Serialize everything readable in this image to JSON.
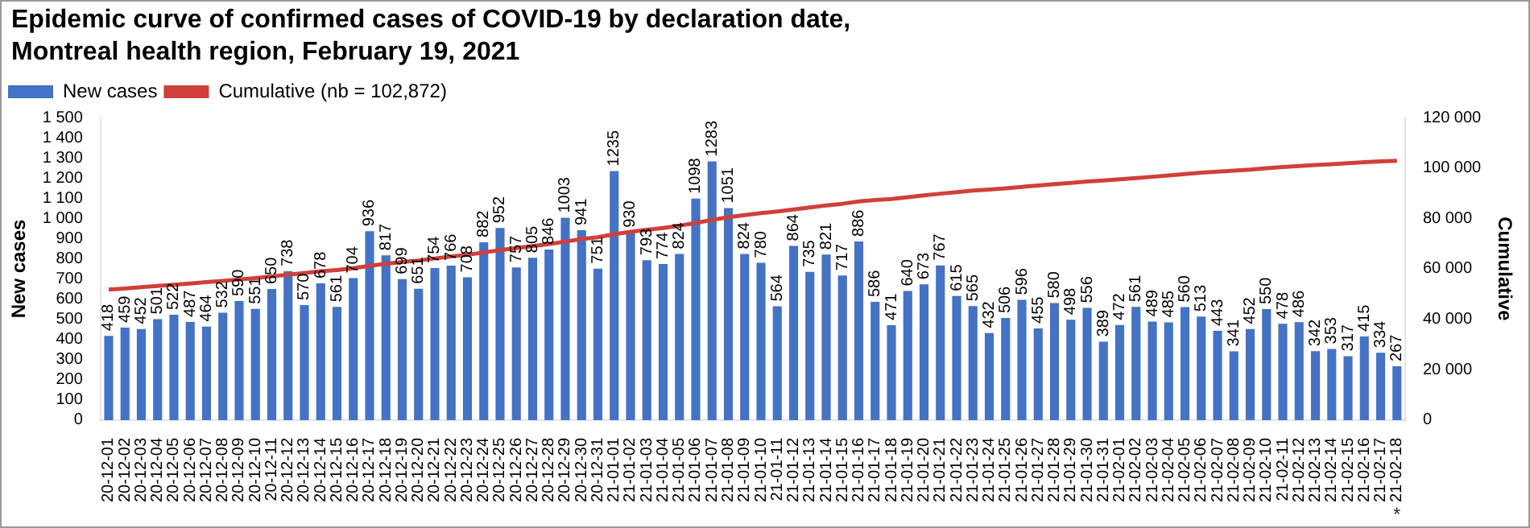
{
  "chart_data": {
    "type": "bar",
    "title": "Epidemic curve of confirmed cases of COVID-19 by declaration date,\nMontreal health region, February 19, 2021",
    "categories": [
      "20-12-01",
      "20-12-02",
      "20-12-03",
      "20-12-04",
      "20-12-05",
      "20-12-06",
      "20-12-07",
      "20-12-08",
      "20-12-09",
      "20-12-10",
      "20-12-11",
      "20-12-12",
      "20-12-13",
      "20-12-14",
      "20-12-15",
      "20-12-16",
      "20-12-17",
      "20-12-18",
      "20-12-19",
      "20-12-20",
      "20-12-21",
      "20-12-22",
      "20-12-23",
      "20-12-24",
      "20-12-25",
      "20-12-26",
      "20-12-27",
      "20-12-28",
      "20-12-29",
      "20-12-30",
      "20-12-31",
      "21-01-01",
      "21-01-02",
      "21-01-03",
      "21-01-04",
      "21-01-05",
      "21-01-06",
      "21-01-07",
      "21-01-08",
      "21-01-09",
      "21-01-10",
      "21-01-11",
      "21-01-12",
      "21-01-13",
      "21-01-14",
      "21-01-15",
      "21-01-16",
      "21-01-17",
      "21-01-18",
      "21-01-19",
      "21-01-20",
      "21-01-21",
      "21-01-22",
      "21-01-23",
      "21-01-24",
      "21-01-25",
      "21-01-26",
      "21-01-27",
      "21-01-28",
      "21-01-29",
      "21-01-30",
      "21-01-31",
      "21-02-01",
      "21-02-02",
      "21-02-03",
      "21-02-04",
      "21-02-05",
      "21-02-06",
      "21-02-07",
      "21-02-08",
      "21-02-09",
      "21-02-10",
      "21-02-11",
      "21-02-12",
      "21-02-13",
      "21-02-14",
      "21-02-15",
      "21-02-16",
      "21-02-17",
      "21-02-18"
    ],
    "series": [
      {
        "name": "New cases",
        "color": "#4472c4",
        "values": [
          418,
          459,
          452,
          501,
          522,
          487,
          464,
          532,
          590,
          551,
          650,
          738,
          570,
          678,
          561,
          704,
          936,
          817,
          699,
          651,
          754,
          766,
          708,
          882,
          952,
          757,
          805,
          846,
          1003,
          941,
          751,
          1235,
          930,
          793,
          774,
          824,
          1098,
          1283,
          1051,
          824,
          780,
          564,
          864,
          735,
          821,
          717,
          886,
          586,
          471,
          640,
          673,
          767,
          615,
          565,
          432,
          506,
          596,
          455,
          580,
          498,
          556,
          389,
          472,
          561,
          489,
          485,
          560,
          513,
          443,
          341,
          452,
          550,
          478,
          486,
          342,
          353,
          317,
          415,
          334,
          267
        ],
        "value_labels": [
          "418",
          "459",
          "452",
          "501",
          "522",
          "487",
          "464",
          "532",
          "590",
          "551",
          "650",
          "738",
          "570",
          "678",
          "561",
          "704",
          "936",
          "817",
          "699",
          "651",
          "754",
          "766",
          "708",
          "882",
          "952",
          "757",
          "805",
          "846",
          "1003",
          "941",
          "751",
          "1235",
          "930",
          "793",
          "774",
          "824",
          "1098",
          "1283",
          "1051",
          "824",
          "780",
          "564",
          "864",
          "735",
          "821",
          "717",
          "886",
          "586",
          "471",
          "640",
          "673",
          "767",
          "615",
          "565",
          "432",
          "506",
          "596",
          "455",
          "580",
          "498",
          "556",
          "389",
          "472",
          "561",
          "489",
          "485",
          "560",
          "513",
          "443",
          "341",
          "452",
          "550",
          "478",
          "486",
          "342",
          "353",
          "317",
          "415",
          "334",
          "267"
        ]
      },
      {
        "name": "Cumulative (nb = 102,872)",
        "type": "line",
        "axis": "y2",
        "color": "#d0403a",
        "values": [
          51800,
          52200,
          52700,
          53200,
          53700,
          54200,
          54700,
          55200,
          55800,
          56300,
          57000,
          57700,
          58300,
          59000,
          59500,
          60200,
          61200,
          62000,
          62700,
          63300,
          64100,
          64900,
          65600,
          66500,
          67400,
          68200,
          69000,
          69800,
          70800,
          71800,
          72500,
          73700,
          74700,
          75500,
          76200,
          77100,
          78200,
          79400,
          80500,
          81300,
          82100,
          82700,
          83500,
          84300,
          85100,
          85800,
          86700,
          87300,
          87700,
          88400,
          89100,
          89800,
          90400,
          91000,
          91400,
          91900,
          92500,
          93000,
          93600,
          94100,
          94600,
          95000,
          95500,
          96000,
          96500,
          97000,
          97600,
          98100,
          98500,
          98900,
          99300,
          99900,
          100400,
          100800,
          101200,
          101500,
          101900,
          102300,
          102600,
          102872
        ]
      }
    ],
    "ylabel": "New cases",
    "y2label": "Cumulative",
    "ylim": [
      0,
      1500
    ],
    "yticks": [
      0,
      100,
      200,
      300,
      400,
      500,
      600,
      700,
      800,
      900,
      {
        "value": 1000,
        "label": "1 000"
      },
      {
        "value": 1100,
        "label": "1 100"
      },
      {
        "value": 1200,
        "label": "1 200"
      },
      {
        "value": 1300,
        "label": "1 300"
      },
      {
        "value": 1400,
        "label": "1 400"
      },
      {
        "value": 1500,
        "label": "1 500"
      }
    ],
    "y2lim": [
      0,
      120000
    ],
    "y2ticks": [
      0,
      {
        "value": 20000,
        "label": "20 000"
      },
      {
        "value": 40000,
        "label": "40 000"
      },
      {
        "value": 60000,
        "label": "60 000"
      },
      {
        "value": 80000,
        "label": "80 000"
      },
      {
        "value": 100000,
        "label": "100 000"
      },
      {
        "value": 120000,
        "label": "120 000"
      }
    ],
    "legend": "top left",
    "grid": false,
    "annotations": [
      "*"
    ]
  }
}
